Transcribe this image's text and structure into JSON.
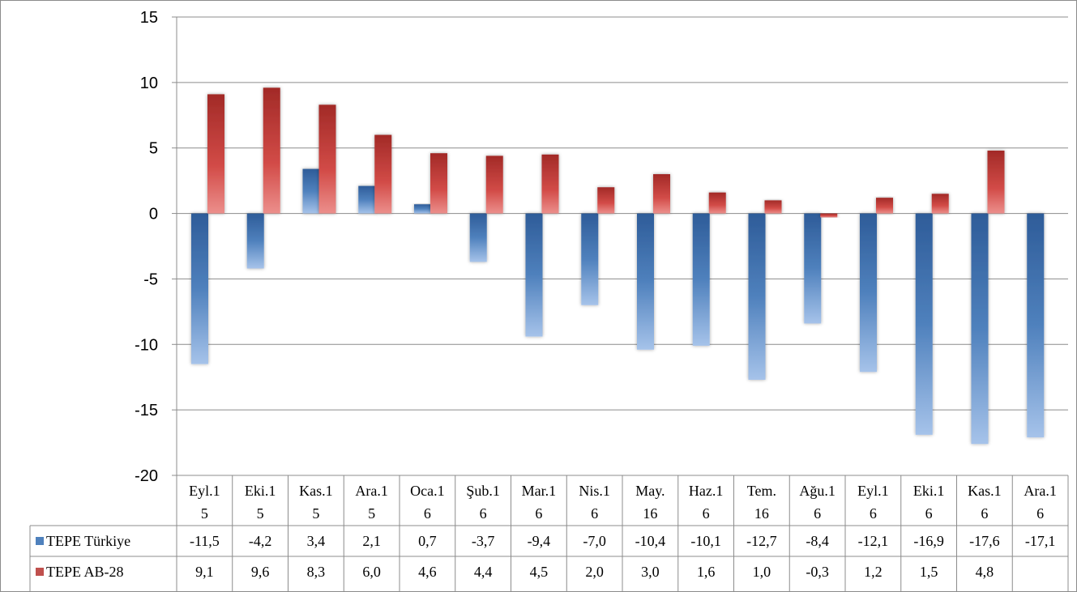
{
  "chart_data": {
    "type": "bar",
    "categories": [
      [
        "Eyl.1",
        "5"
      ],
      [
        "Eki.1",
        "5"
      ],
      [
        "Kas.1",
        "5"
      ],
      [
        "Ara.1",
        "5"
      ],
      [
        "Oca.1",
        "6"
      ],
      [
        "Şub.1",
        "6"
      ],
      [
        "Mar.1",
        "6"
      ],
      [
        "Nis.1",
        "6"
      ],
      [
        "May.",
        "16"
      ],
      [
        "Haz.1",
        "6"
      ],
      [
        "Tem.",
        "16"
      ],
      [
        "Ağu.1",
        "6"
      ],
      [
        "Eyl.1",
        "6"
      ],
      [
        "Eki.1",
        "6"
      ],
      [
        "Kas.1",
        "6"
      ],
      [
        "Ara.1",
        "6"
      ]
    ],
    "series": [
      {
        "name": "TEPE Türkiye",
        "color": "#4f81bd",
        "values": [
          -11.5,
          -4.2,
          3.4,
          2.1,
          0.7,
          -3.7,
          -9.4,
          -7.0,
          -10.4,
          -10.1,
          -12.7,
          -8.4,
          -12.1,
          -16.9,
          -17.6,
          -17.1
        ],
        "labels": [
          "-11,5",
          "-4,2",
          "3,4",
          "2,1",
          "0,7",
          "-3,7",
          "-9,4",
          "-7,0",
          "-10,4",
          "-10,1",
          "-12,7",
          "-8,4",
          "-12,1",
          "-16,9",
          "-17,6",
          "-17,1"
        ]
      },
      {
        "name": "TEPE AB-28",
        "color": "#c0504d",
        "values": [
          9.1,
          9.6,
          8.3,
          6.0,
          4.6,
          4.4,
          4.5,
          2.0,
          3.0,
          1.6,
          1.0,
          -0.3,
          1.2,
          1.5,
          4.8,
          null
        ],
        "labels": [
          "9,1",
          "9,6",
          "8,3",
          "6,0",
          "4,6",
          "4,4",
          "4,5",
          "2,0",
          "3,0",
          "1,6",
          "1,0",
          "-0,3",
          "1,2",
          "1,5",
          "4,8",
          ""
        ]
      }
    ],
    "ylim": [
      -20,
      15
    ],
    "yticks": [
      15,
      10,
      5,
      0,
      -5,
      -10,
      -15,
      -20
    ],
    "grid": true,
    "legend": "data-table"
  }
}
